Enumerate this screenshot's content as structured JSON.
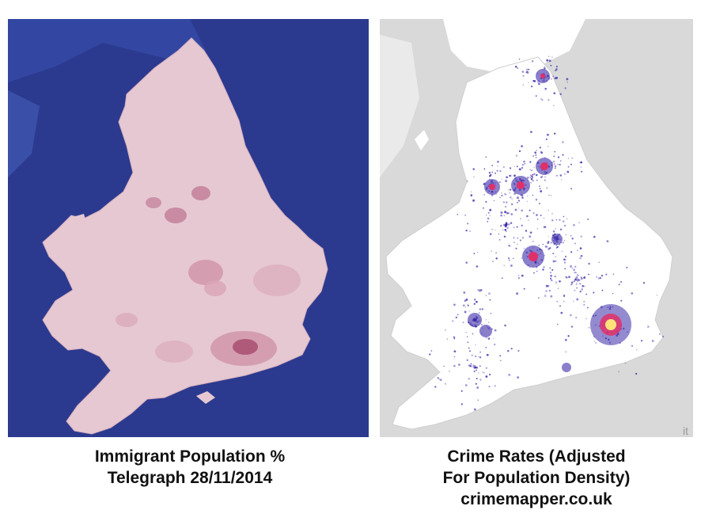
{
  "left_map": {
    "caption_line1": "Immigrant Population %",
    "caption_line2": "Telegraph 28/11/2014",
    "colors": {
      "sea": "#2b3a8f",
      "land": "#e6c8d2",
      "high": "#b05a7a",
      "mid": "#cf93a8"
    }
  },
  "right_map": {
    "caption_line1": "Crime Rates (Adjusted",
    "caption_line2": "For Population Density)",
    "caption_line3": "crimemapper.co.uk",
    "watermark": "it",
    "colors": {
      "background": "#d9d9d9",
      "land": "#ffffff",
      "dots": "#3a2aa8",
      "hot": "#e0306a",
      "hottest": "#ffe27a"
    }
  }
}
